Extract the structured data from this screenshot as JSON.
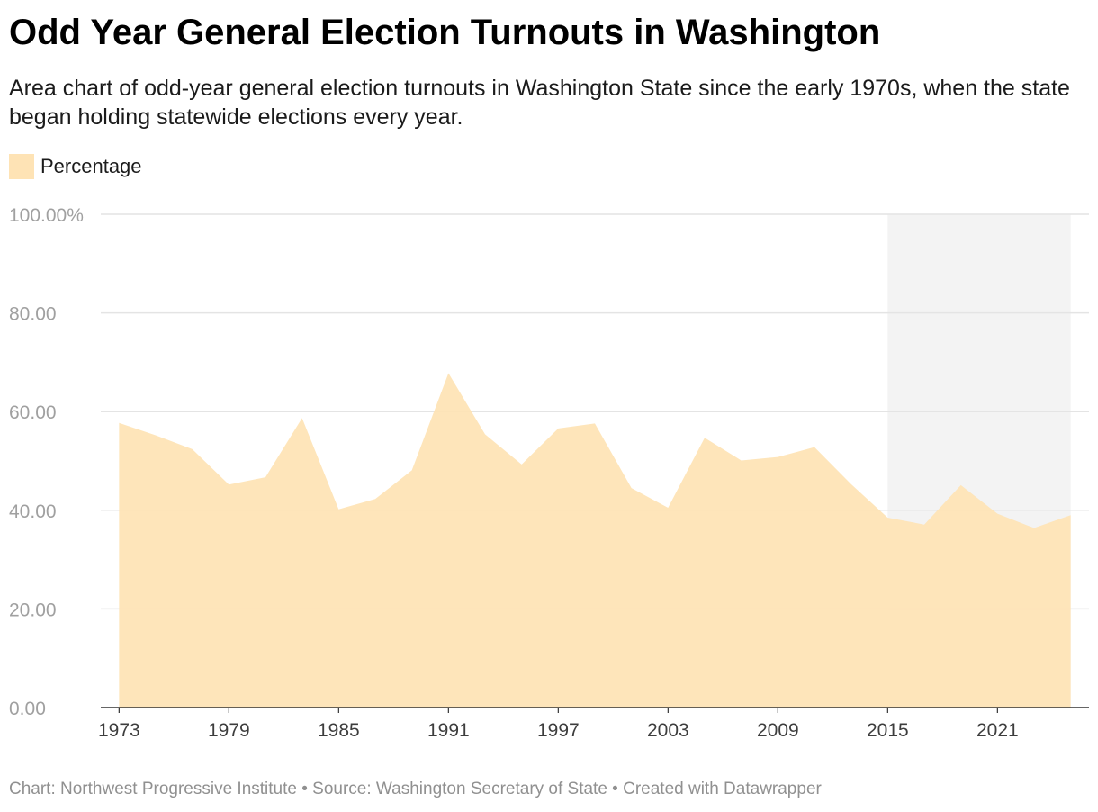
{
  "title": "Odd Year General Election Turnouts in Washington",
  "subtitle": "Area chart of odd-year general election turnouts in Washington State since the early 1970s, when the state began holding statewide elections every year.",
  "footer": "Chart: Northwest Progressive Institute • Source: Washington Secretary of State • Created with Datawrapper",
  "colors": {
    "area": "#fee3b5",
    "highlight_band": "#f3f3f3",
    "gridline": "#e4e4e4",
    "axis_line": "#333333"
  },
  "chart_data": {
    "type": "area",
    "legend": {
      "placement": "top-left",
      "entries": [
        {
          "label": "Percentage"
        }
      ]
    },
    "x": [
      1973,
      1975,
      1977,
      1979,
      1981,
      1983,
      1985,
      1987,
      1989,
      1991,
      1993,
      1995,
      1997,
      1999,
      2001,
      2003,
      2005,
      2007,
      2009,
      2011,
      2013,
      2015,
      2017,
      2019,
      2021,
      2023,
      2025
    ],
    "series": [
      {
        "name": "Percentage",
        "values": [
          57.7,
          55.2,
          52.4,
          45.2,
          46.7,
          58.7,
          40.2,
          42.3,
          48.1,
          67.8,
          55.4,
          49.3,
          56.6,
          57.6,
          44.5,
          40.5,
          54.7,
          50.1,
          50.8,
          52.8,
          45.3,
          38.5,
          37.1,
          45.1,
          39.3,
          36.4,
          39.0
        ]
      }
    ],
    "highlight_range": [
      2015,
      2025
    ],
    "ylim": [
      0,
      100
    ],
    "yticks": [
      0,
      20,
      40,
      60,
      80,
      100
    ],
    "ytick_labels": [
      "0.00",
      "20.00",
      "40.00",
      "60.00",
      "80.00",
      "100.00%"
    ],
    "xticks": [
      1973,
      1979,
      1985,
      1991,
      1997,
      2003,
      2009,
      2015,
      2021
    ],
    "xtick_labels": [
      "1973",
      "1979",
      "1985",
      "1991",
      "1997",
      "2003",
      "2009",
      "2015",
      "2021"
    ],
    "xlim": [
      1972,
      2026
    ],
    "grid": true
  }
}
